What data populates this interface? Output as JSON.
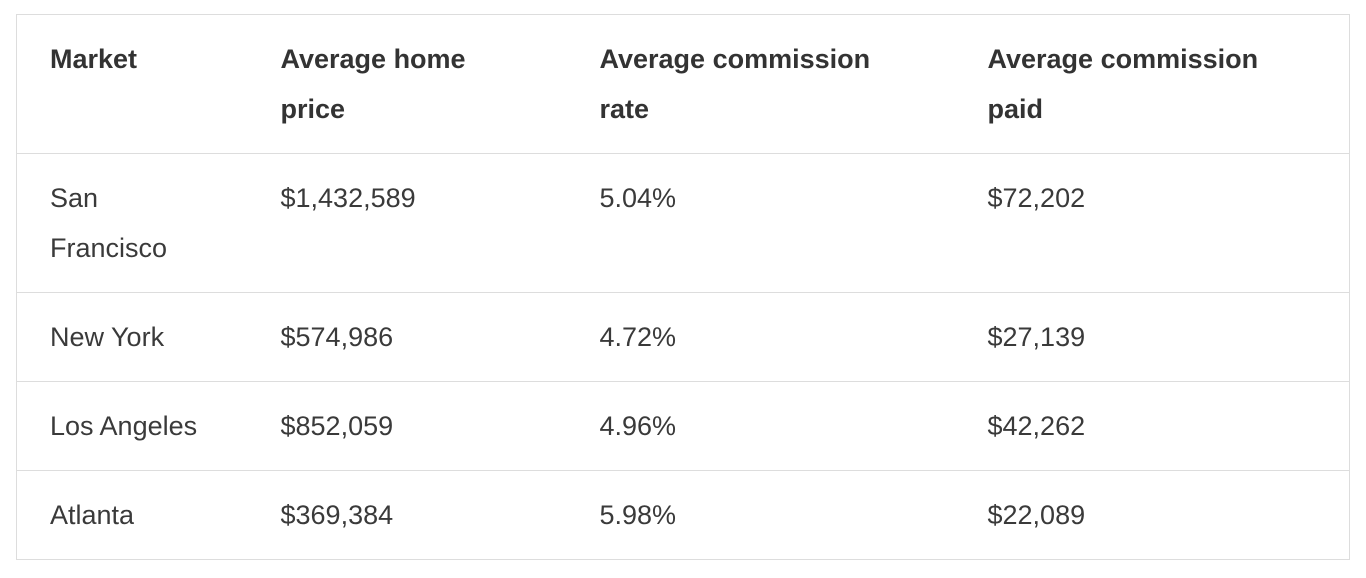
{
  "table": {
    "columns": [
      {
        "id": "market",
        "label": "Market"
      },
      {
        "id": "avg_home_price",
        "label": "Average home price"
      },
      {
        "id": "avg_commission_rate",
        "label": "Average commission rate"
      },
      {
        "id": "avg_commission_paid",
        "label": "Average commission paid"
      }
    ],
    "rows": [
      {
        "market": "San Francisco",
        "avg_home_price": "$1,432,589",
        "avg_commission_rate": "5.04%",
        "avg_commission_paid": "$72,202"
      },
      {
        "market": "New York",
        "avg_home_price": "$574,986",
        "avg_commission_rate": "4.72%",
        "avg_commission_paid": "$27,139"
      },
      {
        "market": "Los Angeles",
        "avg_home_price": "$852,059",
        "avg_commission_rate": "4.96%",
        "avg_commission_paid": "$42,262"
      },
      {
        "market": "Atlanta",
        "avg_home_price": "$369,384",
        "avg_commission_rate": "5.98%",
        "avg_commission_paid": "$22,089"
      }
    ]
  },
  "chart_data": {
    "type": "table",
    "title": "",
    "columns": [
      "Market",
      "Average home price",
      "Average commission rate",
      "Average commission paid"
    ],
    "rows": [
      [
        "San Francisco",
        "$1,432,589",
        "5.04%",
        "$72,202"
      ],
      [
        "New York",
        "$574,986",
        "4.72%",
        "$27,139"
      ],
      [
        "Los Angeles",
        "$852,059",
        "4.96%",
        "$42,262"
      ],
      [
        "Atlanta",
        "$369,384",
        "5.98%",
        "$22,089"
      ]
    ],
    "numeric": {
      "avg_home_price": [
        1432589,
        574986,
        852059,
        369384
      ],
      "avg_commission_rate_pct": [
        5.04,
        4.72,
        4.96,
        5.98
      ],
      "avg_commission_paid": [
        72202,
        27139,
        42262,
        22089
      ]
    }
  },
  "colors": {
    "background": "#ffffff",
    "border": "#dddddd",
    "text": "#3a3a3a",
    "header_text": "#333333"
  }
}
